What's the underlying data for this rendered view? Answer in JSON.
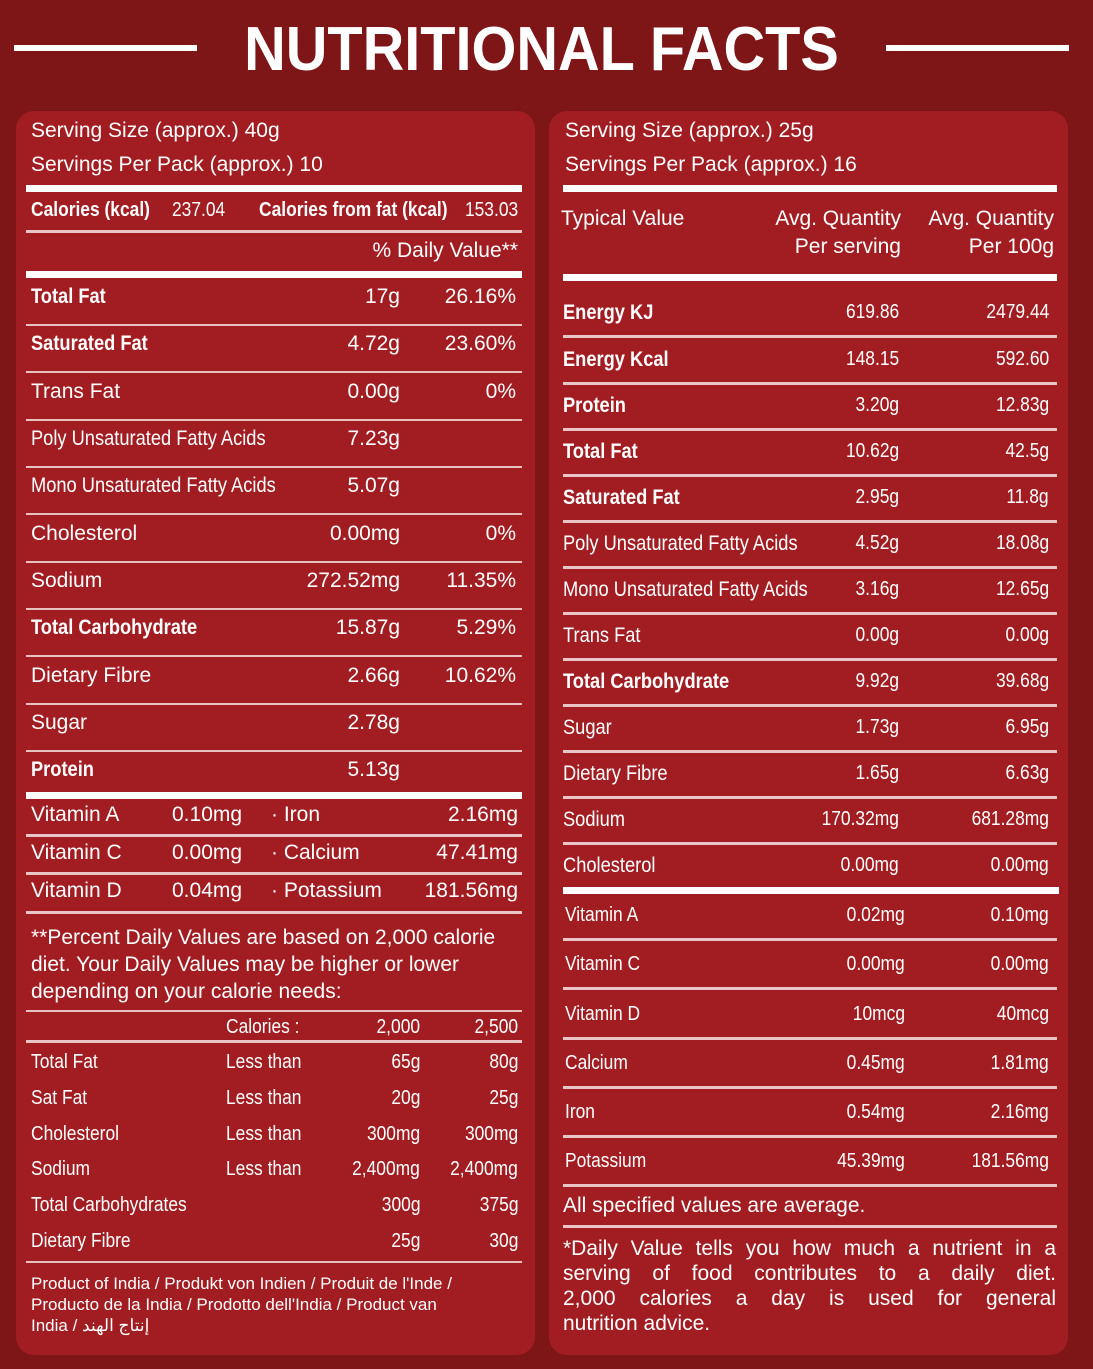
{
  "title": "NUTRITIONAL FACTS",
  "left": {
    "serving_size": "Serving Size (approx.) 40g",
    "servings_per_pack": "Servings Per Pack (approx.) 10",
    "calories_label": "Calories (kcal)",
    "calories_value": "237.04",
    "cal_fat_label": "Calories from fat (kcal)",
    "cal_fat_value": "153.03",
    "daily_value_header": "% Daily Value**",
    "rows": [
      {
        "name": "Total Fat",
        "amount": "17g",
        "dv": "26.16%",
        "bold": true
      },
      {
        "name": "Saturated Fat",
        "amount": "4.72g",
        "dv": "23.60%",
        "bold": true
      },
      {
        "name": "Trans Fat",
        "amount": "0.00g",
        "dv": "0%",
        "bold": false
      },
      {
        "name": "Poly Unsaturated Fatty Acids",
        "amount": "7.23g",
        "dv": "",
        "bold": false
      },
      {
        "name": "Mono Unsaturated Fatty Acids",
        "amount": "5.07g",
        "dv": "",
        "bold": false
      },
      {
        "name": "Cholesterol",
        "amount": "0.00mg",
        "dv": "0%",
        "bold": false
      },
      {
        "name": "Sodium",
        "amount": "272.52mg",
        "dv": "11.35%",
        "bold": false
      },
      {
        "name": "Total Carbohydrate",
        "amount": "15.87g",
        "dv": "5.29%",
        "bold": true
      },
      {
        "name": "Dietary Fibre",
        "amount": "2.66g",
        "dv": "10.62%",
        "bold": false
      },
      {
        "name": "Sugar",
        "amount": "2.78g",
        "dv": "",
        "bold": false
      },
      {
        "name": "Protein",
        "amount": "5.13g",
        "dv": "",
        "bold": true
      }
    ],
    "vitamins": [
      {
        "name": "Vitamin A",
        "value": "0.10mg",
        "mineral": "· Iron",
        "mineral_value": "2.16mg"
      },
      {
        "name": "Vitamin C",
        "value": "0.00mg",
        "mineral": "· Calcium",
        "mineral_value": "47.41mg"
      },
      {
        "name": "Vitamin D",
        "value": "0.04mg",
        "mineral": "· Potassium",
        "mineral_value": "181.56mg"
      }
    ],
    "footnote_lines": [
      "**Percent Daily Values are based on 2,000 calorie",
      "diet. Your Daily Values may be higher or lower",
      "depending on your calorie needs:"
    ],
    "dv_table": {
      "header_label": "Calories :",
      "header_2000": "2,000",
      "header_2500": "2,500",
      "rows": [
        {
          "name": "Total Fat",
          "qual": "Less than",
          "v1": "65g",
          "v2": "80g"
        },
        {
          "name": "Sat Fat",
          "qual": "Less than",
          "v1": "20g",
          "v2": "25g"
        },
        {
          "name": "Cholesterol",
          "qual": "Less than",
          "v1": "300mg",
          "v2": "300mg"
        },
        {
          "name": "Sodium",
          "qual": "Less than",
          "v1": "2,400mg",
          "v2": "2,400mg"
        },
        {
          "name": "Total Carbohydrates",
          "qual": "",
          "v1": "300g",
          "v2": "375g"
        },
        {
          "name": "Dietary Fibre",
          "qual": "",
          "v1": "25g",
          "v2": "30g"
        }
      ]
    },
    "origin_lines": [
      "Product of India / Produkt von Indien / Produit de l'Inde /",
      "Producto de la India / Prodotto dell'India / Product van",
      "India / إنتاج الهند"
    ]
  },
  "right": {
    "serving_size": "Serving Size (approx.) 25g",
    "servings_per_pack": "Servings Per Pack (approx.) 16",
    "col_typical": "Typical Value",
    "col_serving_1": "Avg. Quantity",
    "col_serving_2": "Per serving",
    "col_100g_1": "Avg. Quantity",
    "col_100g_2": "Per 100g",
    "rows": [
      {
        "name": "Energy KJ",
        "serving": "619.86",
        "per100": "2479.44",
        "bold": true
      },
      {
        "name": "Energy Kcal",
        "serving": "148.15",
        "per100": "592.60",
        "bold": true
      },
      {
        "name": "Protein",
        "serving": "3.20g",
        "per100": "12.83g",
        "bold": true
      },
      {
        "name": "Total Fat",
        "serving": "10.62g",
        "per100": "42.5g",
        "bold": true
      },
      {
        "name": "Saturated Fat",
        "serving": "2.95g",
        "per100": "11.8g",
        "bold": true
      },
      {
        "name": "Poly Unsaturated Fatty Acids",
        "serving": "4.52g",
        "per100": "18.08g",
        "bold": false
      },
      {
        "name": "Mono Unsaturated Fatty Acids",
        "serving": "3.16g",
        "per100": "12.65g",
        "bold": false
      },
      {
        "name": "Trans Fat",
        "serving": "0.00g",
        "per100": "0.00g",
        "bold": false
      },
      {
        "name": "Total Carbohydrate",
        "serving": "9.92g",
        "per100": "39.68g",
        "bold": true
      },
      {
        "name": "Sugar",
        "serving": "1.73g",
        "per100": "6.95g",
        "bold": false
      },
      {
        "name": "Dietary Fibre",
        "serving": "1.65g",
        "per100": "6.63g",
        "bold": false
      },
      {
        "name": "Sodium",
        "serving": "170.32mg",
        "per100": "681.28mg",
        "bold": false
      },
      {
        "name": "Cholesterol",
        "serving": "0.00mg",
        "per100": "0.00mg",
        "bold": false
      }
    ],
    "vitamins": [
      {
        "name": "Vitamin A",
        "serving": "0.02mg",
        "per100": "0.10mg"
      },
      {
        "name": "Vitamin C",
        "serving": "0.00mg",
        "per100": "0.00mg"
      },
      {
        "name": "Vitamin D",
        "serving": "10mcg",
        "per100": "40mcg"
      },
      {
        "name": "Calcium",
        "serving": "0.45mg",
        "per100": "1.81mg"
      },
      {
        "name": "Iron",
        "serving": "0.54mg",
        "per100": "2.16mg"
      },
      {
        "name": "Potassium",
        "serving": "45.39mg",
        "per100": "181.56mg"
      }
    ],
    "average_note": "All specified values are average.",
    "dv_note_lines": [
      "*Daily Value tells you how much a nutrient in a",
      "serving of food contributes to a daily diet.",
      "2,000 calories a day is used for general",
      "nutrition advice."
    ]
  }
}
